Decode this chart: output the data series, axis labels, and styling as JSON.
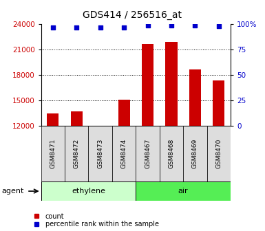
{
  "title": "GDS414 / 256516_at",
  "samples": [
    "GSM8471",
    "GSM8472",
    "GSM8473",
    "GSM8474",
    "GSM8467",
    "GSM8468",
    "GSM8469",
    "GSM8470"
  ],
  "counts": [
    13500,
    13700,
    12050,
    15100,
    21700,
    21900,
    18700,
    17400
  ],
  "percentiles": [
    97,
    97,
    97,
    97,
    99,
    99,
    99,
    98
  ],
  "groups": [
    {
      "label": "ethylene",
      "start": 0,
      "end": 4,
      "color": "#ccffcc"
    },
    {
      "label": "air",
      "start": 4,
      "end": 8,
      "color": "#55ee55"
    }
  ],
  "agent_label": "agent",
  "ylim_left": [
    12000,
    24000
  ],
  "ylim_right": [
    0,
    100
  ],
  "yticks_left": [
    12000,
    15000,
    18000,
    21000,
    24000
  ],
  "yticks_right": [
    0,
    25,
    50,
    75,
    100
  ],
  "bar_color": "#cc0000",
  "dot_color": "#0000cc",
  "bar_width": 0.5,
  "legend_items": [
    "count",
    "percentile rank within the sample"
  ],
  "legend_colors": [
    "#cc0000",
    "#0000cc"
  ],
  "background_color": "#ffffff",
  "plot_bg_color": "#ffffff",
  "tick_label_color_left": "#cc0000",
  "tick_label_color_right": "#0000cc",
  "gray_box_color": "#dddddd",
  "sample_label_fontsize": 6.5,
  "group_label_fontsize": 8,
  "ytick_fontsize": 7.5,
  "title_fontsize": 10
}
